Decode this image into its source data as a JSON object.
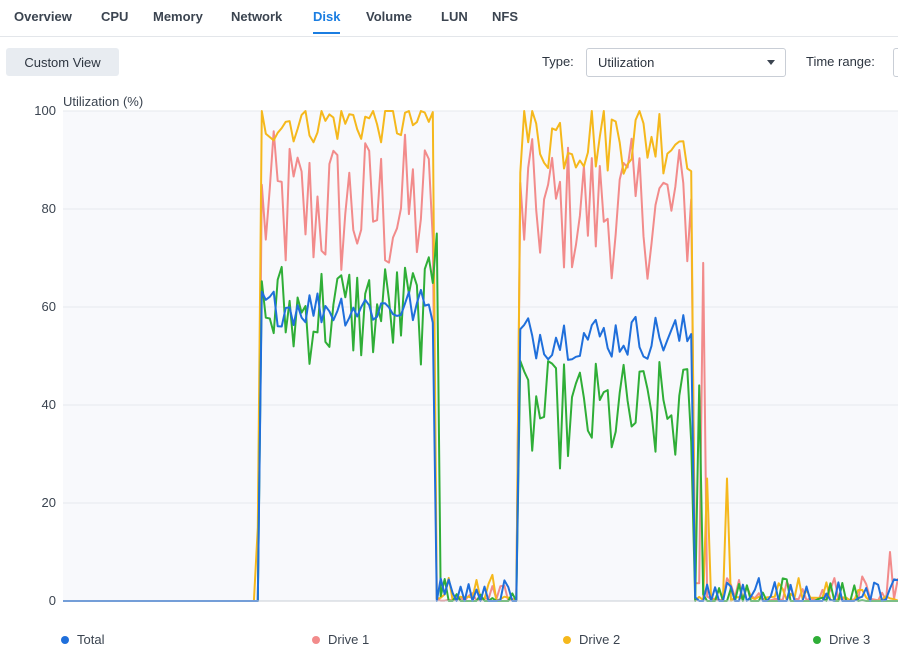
{
  "tabs": [
    "Overview",
    "CPU",
    "Memory",
    "Network",
    "Disk",
    "Volume",
    "LUN",
    "NFS"
  ],
  "active_tab": "Disk",
  "toolbar": {
    "custom_view": "Custom View",
    "type_label": "Type:",
    "type_value": "Utilization",
    "time_range_label": "Time range:"
  },
  "colors": {
    "accent": "#1a7de1",
    "total": "#1f6fdb",
    "drive1": "#f28b8b",
    "drive2": "#f5b81c",
    "drive3": "#2fae37"
  },
  "chart_data": {
    "type": "line",
    "ylabel": "Utilization (%)",
    "ylim": [
      0,
      100
    ],
    "y_ticks": [
      "0",
      "20",
      "40",
      "60",
      "80",
      "100"
    ],
    "grid": true,
    "legend_position": "bottom",
    "x_unit": "sample index (0-210)",
    "series": [
      {
        "name": "Total",
        "color": "#1f6fdb",
        "segments": [
          {
            "x_start": 50,
            "x_end": 93,
            "mean": 60,
            "jitter": 2.5
          },
          {
            "x_start": 115,
            "x_end": 158,
            "mean": 54,
            "jitter": 3
          }
        ],
        "baseline": 0
      },
      {
        "name": "Drive 1",
        "color": "#f28b8b",
        "segments": [
          {
            "x_start": 50,
            "x_end": 93,
            "mean": 80,
            "jitter": 10
          },
          {
            "x_start": 115,
            "x_end": 158,
            "mean": 80,
            "jitter": 9
          }
        ],
        "spikes": [
          {
            "x": 161,
            "y": 69
          },
          {
            "x": 208,
            "y": 10
          }
        ],
        "baseline": 2
      },
      {
        "name": "Drive 2",
        "color": "#f5b81c",
        "segments": [
          {
            "x_start": 50,
            "x_end": 93,
            "mean": 98,
            "jitter": 3
          },
          {
            "x_start": 115,
            "x_end": 158,
            "mean": 95,
            "jitter": 5
          }
        ],
        "spikes": [
          {
            "x": 49,
            "y": 15
          },
          {
            "x": 162,
            "y": 25
          },
          {
            "x": 167,
            "y": 25
          }
        ],
        "baseline": 3
      },
      {
        "name": "Drive 3",
        "color": "#2fae37",
        "segments": [
          {
            "x_start": 50,
            "x_end": 93,
            "mean": 59,
            "jitter": 7
          },
          {
            "x_start": 115,
            "x_end": 158,
            "mean": 38,
            "jitter": 7
          }
        ],
        "spikes": [
          {
            "x": 94,
            "y": 75
          },
          {
            "x": 160,
            "y": 44
          }
        ],
        "baseline": 0
      }
    ]
  }
}
